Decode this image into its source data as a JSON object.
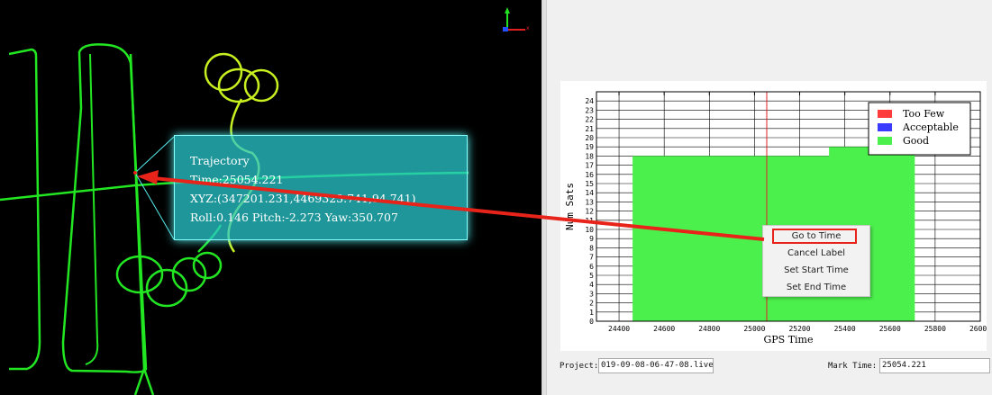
{
  "trajectory_view": {
    "tooltip": {
      "title": "Trajectory",
      "time": "Time:25054.221",
      "xyz": "XYZ:(347201.231,4469323.741,94.741)",
      "attitude": "Roll:0.146 Pitch:-2.273 Yaw:350.707"
    },
    "axis_gizmo_label": "x"
  },
  "context_menu": {
    "items": [
      "Go to Time",
      "Cancel Label",
      "Set Start Time",
      "Set End Time"
    ],
    "highlighted": "Go to Time"
  },
  "bottom_bar": {
    "project_label": "Project:",
    "project_value": "019-09-08-06-47-08.live",
    "mark_time_label": "Mark Time:",
    "mark_time_value": "25054.221"
  },
  "chart_data": {
    "type": "area",
    "xlabel": "GPS Time",
    "ylabel": "Num Sats",
    "xlim": [
      24300,
      26000
    ],
    "ylim": [
      0,
      25
    ],
    "x_ticks": [
      24400,
      24600,
      24800,
      25000,
      25200,
      25400,
      25600,
      25800,
      26000
    ],
    "y_ticks": [
      0,
      1,
      2,
      3,
      4,
      5,
      6,
      7,
      8,
      9,
      10,
      11,
      12,
      13,
      14,
      15,
      16,
      17,
      18,
      19,
      20,
      21,
      22,
      23,
      24
    ],
    "grid": true,
    "legend_position": "top-right",
    "series": [
      {
        "name": "Too Few",
        "color": "#ff3b3b",
        "points": []
      },
      {
        "name": "Acceptable",
        "color": "#3b3bff",
        "points": []
      },
      {
        "name": "Good",
        "color": "#4cf04c",
        "points": [
          [
            24460,
            18
          ],
          [
            25330,
            18
          ],
          [
            25330,
            19
          ],
          [
            25710,
            19
          ],
          [
            25710,
            0
          ]
        ],
        "start": 24460,
        "end": 25710
      }
    ],
    "marker_x": 25054.221
  },
  "colors": {
    "trajectory_green": "#22e622",
    "trajectory_yellow": "#c8f020",
    "arrow_red": "#e8231a"
  }
}
